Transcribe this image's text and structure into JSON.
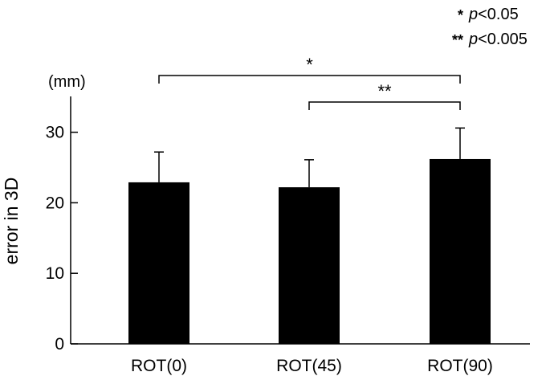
{
  "chart_data": {
    "type": "bar",
    "categories": [
      "ROT(0)",
      "ROT(45)",
      "ROT(90)"
    ],
    "values": [
      22.9,
      22.2,
      26.2
    ],
    "errors": [
      4.3,
      3.9,
      4.4
    ],
    "ylabel": "error in 3D",
    "yunit": "(mm)",
    "ylim": [
      0,
      35
    ],
    "yticks": [
      0,
      10,
      20,
      30
    ],
    "bar_color": "#000000",
    "grid": false,
    "significance": [
      {
        "from": 0,
        "to": 2,
        "label": "*"
      },
      {
        "from": 1,
        "to": 2,
        "label": "**"
      }
    ],
    "legend": [
      {
        "symbol": "*",
        "p": "p",
        "text": "<0.05"
      },
      {
        "symbol": "**",
        "p": "p",
        "text": "<0.005"
      }
    ]
  }
}
